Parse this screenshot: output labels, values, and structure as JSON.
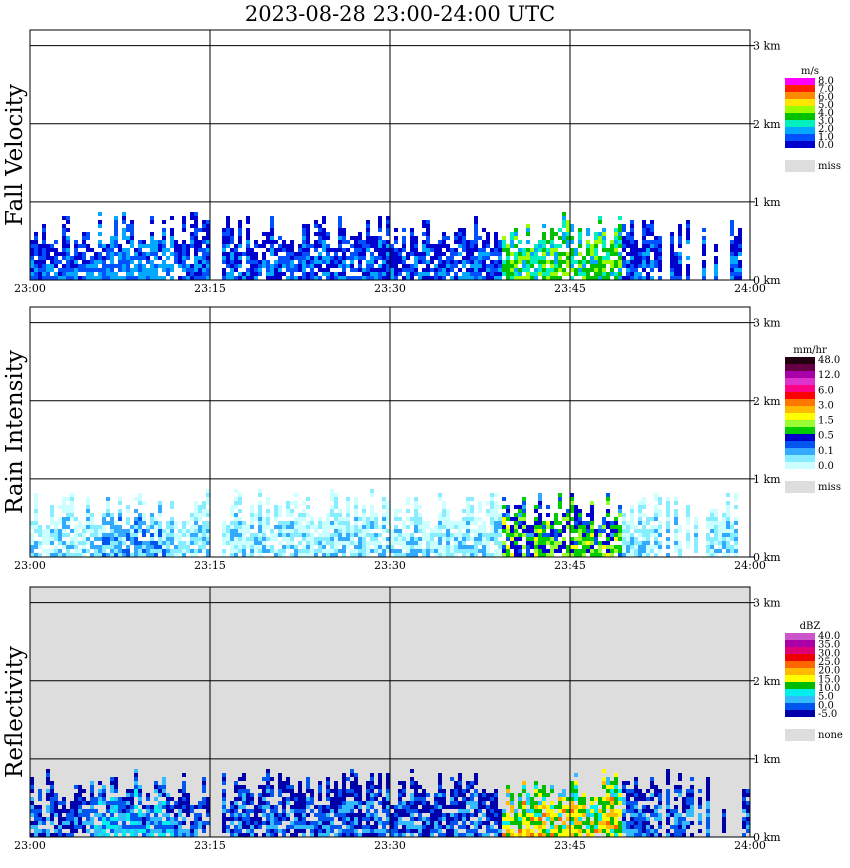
{
  "title": "2023-08-28   23:00-24:00 UTC",
  "chart_data": [
    {
      "type": "heatmap",
      "panel": "Fall Velocity",
      "ylabel": "Fall Velocity",
      "x_ticks": [
        "23:00",
        "23:15",
        "23:30",
        "23:45",
        "24:00"
      ],
      "y_ticks": [
        "0 km",
        "1 km",
        "2 km",
        "3 km"
      ],
      "xlim": [
        "23:00",
        "24:00"
      ],
      "ylim": [
        0,
        3.2
      ],
      "unit": "m/s",
      "colorbar_labels": [
        "8.0",
        "7.0",
        "6.0",
        "5.0",
        "4.0",
        "3.0",
        "2.0",
        "1.0",
        "0.0",
        "miss"
      ],
      "colorbar_colors": [
        "#ff00ff",
        "#ff2000",
        "#ff8a00",
        "#ffe600",
        "#9bff00",
        "#00c000",
        "#00f0c0",
        "#00a8ff",
        "#0050ff",
        "#0000cc",
        "#dddddd"
      ],
      "background": "#ffffff",
      "grid": true,
      "echo_top_km": 1.0
    },
    {
      "type": "heatmap",
      "panel": "Rain Intensity",
      "ylabel": "Rain Intensity",
      "x_ticks": [
        "23:00",
        "23:15",
        "23:30",
        "23:45",
        "24:00"
      ],
      "y_ticks": [
        "0 km",
        "1 km",
        "2 km",
        "3 km"
      ],
      "xlim": [
        "23:00",
        "24:00"
      ],
      "ylim": [
        0,
        3.2
      ],
      "unit": "mm/hr",
      "colorbar_labels": [
        "48.0",
        "12.0",
        "6.0",
        "3.0",
        "1.5",
        "0.5",
        "0.1",
        "0.0",
        "miss"
      ],
      "colorbar_colors": [
        "#220011",
        "#660044",
        "#aa00aa",
        "#dd33cc",
        "#ff0088",
        "#ff0000",
        "#ff7700",
        "#ffbb00",
        "#ffff00",
        "#99ff33",
        "#00cc00",
        "#0000cc",
        "#0055ee",
        "#33aaff",
        "#88eeff",
        "#ccffff",
        "#dddddd"
      ],
      "background": "#ffffff",
      "grid": true,
      "echo_top_km": 1.0
    },
    {
      "type": "heatmap",
      "panel": "Reflectivity",
      "ylabel": "Reflectivity",
      "x_ticks": [
        "23:00",
        "23:15",
        "23:30",
        "23:45",
        "24:00"
      ],
      "y_ticks": [
        "0 km",
        "1 km",
        "2 km",
        "3 km"
      ],
      "xlim": [
        "23:00",
        "24:00"
      ],
      "ylim": [
        0,
        3.2
      ],
      "unit": "dBZ",
      "colorbar_labels": [
        "40.0",
        "35.0",
        "30.0",
        "25.0",
        "20.0",
        "15.0",
        "10.0",
        "5.0",
        "0.0",
        "-5.0",
        "none"
      ],
      "colorbar_colors": [
        "#cc55cc",
        "#aa00aa",
        "#dd0077",
        "#ee0000",
        "#ff6600",
        "#ffbb00",
        "#ffff00",
        "#00bb00",
        "#00eeee",
        "#33bbff",
        "#0055ee",
        "#0000aa",
        "#dddddd"
      ],
      "background": "#dddddd",
      "grid": true,
      "echo_top_km": 1.0
    }
  ]
}
